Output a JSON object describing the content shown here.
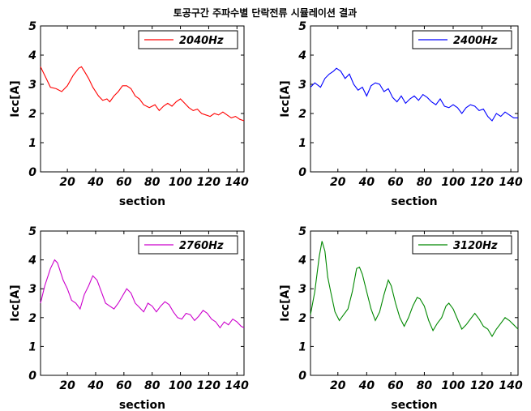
{
  "figure_title": "토공구간 주파수별 단락전류 시뮬레이션 결과",
  "chart_data": [
    {
      "type": "line",
      "xlabel": "section",
      "ylabel": "Icc[A]",
      "xlim": [
        1,
        145
      ],
      "ylim": [
        0,
        5
      ],
      "xticks": [
        20,
        40,
        60,
        80,
        100,
        120,
        140
      ],
      "yticks": [
        0,
        1,
        2,
        3,
        4,
        5
      ],
      "legend_position": "top-right",
      "series": [
        {
          "name": "2040Hz",
          "color": "#ff0000",
          "x": [
            1,
            5,
            8,
            12,
            16,
            20,
            24,
            28,
            30,
            32,
            35,
            38,
            42,
            45,
            48,
            50,
            53,
            56,
            59,
            62,
            65,
            68,
            71,
            74,
            78,
            82,
            85,
            88,
            91,
            94,
            97,
            100,
            103,
            106,
            109,
            112,
            115,
            118,
            121,
            124,
            127,
            130,
            133,
            136,
            139,
            142,
            145
          ],
          "y": [
            3.6,
            3.2,
            2.9,
            2.85,
            2.75,
            2.95,
            3.3,
            3.55,
            3.6,
            3.45,
            3.2,
            2.9,
            2.6,
            2.45,
            2.5,
            2.4,
            2.6,
            2.75,
            2.95,
            2.95,
            2.85,
            2.6,
            2.5,
            2.3,
            2.2,
            2.3,
            2.1,
            2.25,
            2.35,
            2.25,
            2.4,
            2.5,
            2.35,
            2.2,
            2.1,
            2.15,
            2.0,
            1.95,
            1.9,
            2.0,
            1.95,
            2.05,
            1.95,
            1.85,
            1.9,
            1.8,
            1.75
          ]
        },
        {
          "name": "2400Hz",
          "color": "#0000ff",
          "x": [
            1,
            4,
            8,
            11,
            14,
            17,
            19,
            22,
            25,
            28,
            31,
            34,
            37,
            40,
            43,
            46,
            49,
            52,
            55,
            58,
            61,
            64,
            67,
            70,
            73,
            76,
            79,
            82,
            85,
            88,
            91,
            94,
            97,
            100,
            103,
            106,
            109,
            112,
            115,
            118,
            121,
            124,
            127,
            130,
            133,
            136,
            139,
            142,
            145
          ],
          "y": [
            2.9,
            3.05,
            2.9,
            3.2,
            3.35,
            3.45,
            3.55,
            3.45,
            3.2,
            3.35,
            3.0,
            2.8,
            2.9,
            2.6,
            2.95,
            3.05,
            3.0,
            2.75,
            2.85,
            2.55,
            2.4,
            2.6,
            2.35,
            2.5,
            2.6,
            2.45,
            2.65,
            2.55,
            2.4,
            2.3,
            2.5,
            2.25,
            2.2,
            2.3,
            2.2,
            2.0,
            2.2,
            2.3,
            2.25,
            2.1,
            2.15,
            1.9,
            1.75,
            2.0,
            1.9,
            2.05,
            1.95,
            1.85,
            1.85
          ]
        },
        {
          "name": "2760Hz",
          "color": "#cc00cc",
          "x": [
            1,
            4,
            8,
            11,
            13,
            15,
            17,
            20,
            23,
            26,
            29,
            32,
            35,
            38,
            41,
            44,
            47,
            50,
            53,
            56,
            59,
            62,
            65,
            68,
            71,
            74,
            77,
            80,
            83,
            86,
            89,
            92,
            95,
            98,
            101,
            104,
            107,
            110,
            113,
            116,
            119,
            122,
            125,
            128,
            131,
            134,
            137,
            140,
            143,
            145
          ],
          "y": [
            2.5,
            3.1,
            3.7,
            4.0,
            3.9,
            3.6,
            3.3,
            3.0,
            2.6,
            2.5,
            2.3,
            2.8,
            3.1,
            3.45,
            3.3,
            2.9,
            2.5,
            2.4,
            2.3,
            2.5,
            2.75,
            3.0,
            2.85,
            2.5,
            2.35,
            2.2,
            2.5,
            2.4,
            2.2,
            2.4,
            2.55,
            2.45,
            2.2,
            2.0,
            1.95,
            2.15,
            2.1,
            1.9,
            2.05,
            2.25,
            2.15,
            1.95,
            1.85,
            1.65,
            1.85,
            1.75,
            1.95,
            1.85,
            1.7,
            1.65
          ]
        },
        {
          "name": "3120Hz",
          "color": "#008800",
          "x": [
            1,
            4,
            7,
            9,
            11,
            13,
            15,
            18,
            21,
            24,
            27,
            30,
            33,
            35,
            37,
            40,
            43,
            46,
            49,
            52,
            55,
            57,
            60,
            63,
            66,
            69,
            72,
            75,
            77,
            80,
            83,
            86,
            89,
            92,
            95,
            97,
            100,
            103,
            106,
            109,
            112,
            115,
            118,
            121,
            124,
            127,
            130,
            133,
            136,
            139,
            142,
            145
          ],
          "y": [
            2.1,
            2.9,
            4.1,
            4.65,
            4.3,
            3.4,
            2.9,
            2.2,
            1.9,
            2.1,
            2.3,
            2.9,
            3.7,
            3.75,
            3.5,
            2.9,
            2.3,
            1.9,
            2.2,
            2.8,
            3.3,
            3.1,
            2.5,
            2.0,
            1.7,
            2.0,
            2.4,
            2.7,
            2.65,
            2.4,
            1.9,
            1.55,
            1.8,
            2.0,
            2.4,
            2.5,
            2.3,
            1.95,
            1.6,
            1.75,
            1.95,
            2.15,
            1.95,
            1.7,
            1.6,
            1.35,
            1.6,
            1.8,
            2.0,
            1.9,
            1.75,
            1.6
          ]
        }
      ]
    }
  ]
}
